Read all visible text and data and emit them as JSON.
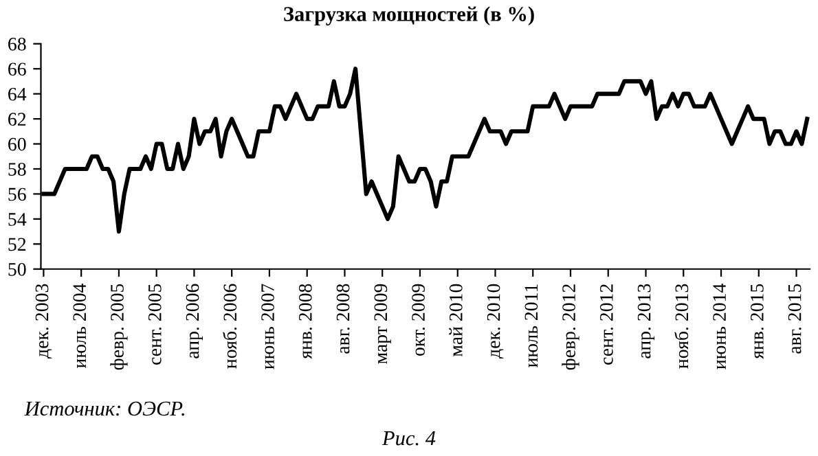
{
  "chart_data": {
    "type": "line",
    "title": "Загрузка мощностей (в %)",
    "categories": [
      "дек. 2003",
      null,
      null,
      null,
      null,
      null,
      null,
      "июль 2004",
      null,
      null,
      null,
      null,
      null,
      null,
      "февр. 2005",
      null,
      null,
      null,
      null,
      null,
      null,
      "сент. 2005",
      null,
      null,
      null,
      null,
      null,
      null,
      "апр. 2006",
      null,
      null,
      null,
      null,
      null,
      null,
      "нояб. 2006",
      null,
      null,
      null,
      null,
      null,
      null,
      "июнь 2007",
      null,
      null,
      null,
      null,
      null,
      null,
      "янв. 2008",
      null,
      null,
      null,
      null,
      null,
      null,
      "авг. 2008",
      null,
      null,
      null,
      null,
      null,
      null,
      "март 2009",
      null,
      null,
      null,
      null,
      null,
      null,
      "окт. 2009",
      null,
      null,
      null,
      null,
      null,
      null,
      "май 2010",
      null,
      null,
      null,
      null,
      null,
      null,
      "дек. 2010",
      null,
      null,
      null,
      null,
      null,
      null,
      "июль 2011",
      null,
      null,
      null,
      null,
      null,
      null,
      "февр. 2012",
      null,
      null,
      null,
      null,
      null,
      null,
      "сент. 2012",
      null,
      null,
      null,
      null,
      null,
      null,
      "апр. 2013",
      null,
      null,
      null,
      null,
      null,
      null,
      "нояб. 2013",
      null,
      null,
      null,
      null,
      null,
      null,
      "июнь 2014",
      null,
      null,
      null,
      null,
      null,
      null,
      "янв. 2015",
      null,
      null,
      null,
      null,
      null,
      null,
      "авг. 2015",
      null,
      null
    ],
    "series": [
      {
        "color": "#000000",
        "values": [
          56,
          56,
          56,
          57,
          58,
          58,
          58,
          58,
          58,
          59,
          59,
          58,
          58,
          57,
          53,
          56,
          58,
          58,
          58,
          59,
          58,
          60,
          60,
          58,
          58,
          60,
          58,
          59,
          62,
          60,
          61,
          61,
          62,
          59,
          61,
          62,
          61,
          60,
          59,
          59,
          61,
          61,
          61,
          63,
          63,
          62,
          63,
          64,
          63,
          62,
          62,
          63,
          63,
          63,
          65,
          63,
          63,
          64,
          66,
          61,
          56,
          57,
          56,
          55,
          54,
          55,
          59,
          58,
          57,
          57,
          58,
          58,
          57,
          55,
          57,
          57,
          59,
          59,
          59,
          59,
          60,
          61,
          62,
          61,
          61,
          61,
          60,
          61,
          61,
          61,
          61,
          63,
          63,
          63,
          63,
          64,
          63,
          62,
          63,
          63,
          63,
          63,
          63,
          64,
          64,
          64,
          64,
          64,
          65,
          65,
          65,
          65,
          64,
          65,
          62,
          63,
          63,
          64,
          63,
          64,
          64,
          63,
          63,
          63,
          64,
          63,
          62,
          61,
          60,
          61,
          62,
          63,
          62,
          62,
          62,
          60,
          61,
          61,
          60,
          60,
          61,
          60,
          62
        ]
      }
    ],
    "ylim": [
      50,
      68
    ],
    "yticks": [
      50,
      52,
      54,
      56,
      58,
      60,
      62,
      64,
      66,
      68
    ],
    "grid": false,
    "marker": "none",
    "line_style": "solid",
    "annotations": [
      "Источник: ОЭСР.",
      "Рис. 4"
    ]
  }
}
